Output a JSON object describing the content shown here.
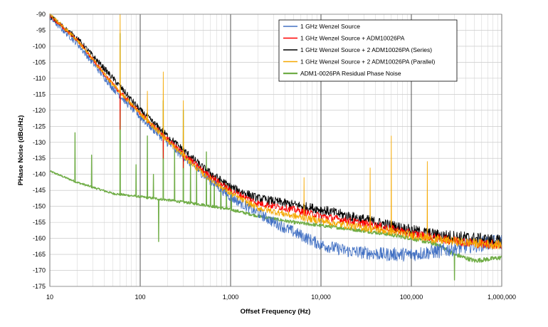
{
  "chart_data": {
    "type": "line",
    "title": "",
    "xlabel": "Offset Frequency (Hz)",
    "ylabel": "PHase Noise (dBc/Hz)",
    "xscale": "log",
    "xlim": [
      10,
      1000000
    ],
    "ylim": [
      -175,
      -90
    ],
    "y_ticks": [
      -90,
      -95,
      -100,
      -105,
      -110,
      -115,
      -120,
      -125,
      -130,
      -135,
      -140,
      -145,
      -150,
      -155,
      -160,
      -165,
      -170,
      -175
    ],
    "x_ticks": [
      {
        "value": 10,
        "label": "10"
      },
      {
        "value": 100,
        "label": "100"
      },
      {
        "value": 1000,
        "label": "1,000"
      },
      {
        "value": 10000,
        "label": "10,000"
      },
      {
        "value": 100000,
        "label": "100,000"
      },
      {
        "value": 1000000,
        "label": "1,000,000"
      }
    ],
    "grid": true,
    "legend_position": "top-right",
    "series": [
      {
        "name": "1 GHz Wenzel Source",
        "color": "#4472c4",
        "x": [
          10,
          20,
          50,
          100,
          200,
          500,
          1000,
          1500,
          2000,
          3000,
          5000,
          10000,
          20000,
          50000,
          100000,
          200000,
          500000,
          1000000
        ],
        "y": [
          -91,
          -99,
          -113,
          -122,
          -130,
          -140,
          -147,
          -150,
          -152,
          -155,
          -158,
          -162,
          -164,
          -165,
          -165,
          -164,
          -162,
          -161
        ],
        "noise": 2.5
      },
      {
        "name": "1 GHz Wenzel Source + ADM10026PA",
        "color": "#ff0000",
        "x": [
          10,
          20,
          50,
          100,
          200,
          500,
          1000,
          2000,
          5000,
          10000,
          20000,
          50000,
          100000,
          200000,
          500000,
          1000000
        ],
        "y": [
          -90.5,
          -98,
          -112,
          -121,
          -129,
          -139,
          -145,
          -149,
          -151,
          -153,
          -154.5,
          -156.5,
          -158.5,
          -160,
          -161.5,
          -162
        ],
        "noise": 1.5,
        "spurs": [
          {
            "x": 60,
            "y": -126
          },
          {
            "x": 180,
            "y": -135
          },
          {
            "x": 300,
            "y": -138
          }
        ]
      },
      {
        "name": "1 GHz Wenzel Source + 2 ADM10026PA (Series)",
        "color": "#000000",
        "x": [
          10,
          20,
          50,
          100,
          200,
          500,
          1000,
          2000,
          5000,
          10000,
          20000,
          50000,
          100000,
          200000,
          500000,
          1000000
        ],
        "y": [
          -90.5,
          -97.5,
          -110,
          -120,
          -128,
          -138,
          -144,
          -147.5,
          -149.5,
          -151,
          -153,
          -155.5,
          -157.5,
          -159,
          -160,
          -161
        ],
        "noise": 2
      },
      {
        "name": "1 GHz Wenzel Source + 2 ADM10026PA (Parallel)",
        "color": "#f5a800",
        "x": [
          10,
          20,
          50,
          100,
          200,
          500,
          1000,
          2000,
          5000,
          10000,
          20000,
          50000,
          100000,
          200000,
          500000,
          1000000
        ],
        "y": [
          -90,
          -98,
          -112,
          -121,
          -129.5,
          -140,
          -146,
          -150.5,
          -153,
          -154.5,
          -156,
          -157.5,
          -159,
          -160.5,
          -161.5,
          -162
        ],
        "noise": 1.5,
        "spurs": [
          {
            "x": 60,
            "y": -90
          },
          {
            "x": 120,
            "y": -114
          },
          {
            "x": 180,
            "y": -108
          },
          {
            "x": 300,
            "y": -117
          },
          {
            "x": 6500,
            "y": -141
          },
          {
            "x": 35000,
            "y": -138
          },
          {
            "x": 60000,
            "y": -128
          },
          {
            "x": 150000,
            "y": -136
          }
        ]
      },
      {
        "name": "ADM1-0026PA Residual Phase Noise",
        "color": "#70ad47",
        "x": [
          10,
          20,
          50,
          100,
          200,
          500,
          1000,
          2000,
          5000,
          10000,
          20000,
          50000,
          100000,
          200000,
          300000,
          500000,
          1000000
        ],
        "y": [
          -139,
          -142.5,
          -146,
          -147,
          -148,
          -149.5,
          -151,
          -153,
          -155,
          -156,
          -157,
          -158.5,
          -160,
          -162,
          -165,
          -167,
          -166
        ],
        "noise": 0.7,
        "spurs": [
          {
            "x": 19,
            "y": -127
          },
          {
            "x": 29,
            "y": -134
          },
          {
            "x": 60,
            "y": -96
          },
          {
            "x": 90,
            "y": -137
          },
          {
            "x": 120,
            "y": -128
          },
          {
            "x": 140,
            "y": -140
          },
          {
            "x": 180,
            "y": -117
          },
          {
            "x": 240,
            "y": -132
          },
          {
            "x": 300,
            "y": -120
          },
          {
            "x": 360,
            "y": -136
          },
          {
            "x": 420,
            "y": -138
          },
          {
            "x": 540,
            "y": -133
          },
          {
            "x": 600,
            "y": -140
          },
          {
            "x": 660,
            "y": -141
          },
          {
            "x": 780,
            "y": -142
          },
          {
            "x": 900,
            "y": -143
          },
          {
            "x": 1020,
            "y": -144
          }
        ],
        "dips": [
          {
            "x": 160,
            "y": -161
          },
          {
            "x": 300000,
            "y": -173
          }
        ]
      }
    ]
  }
}
